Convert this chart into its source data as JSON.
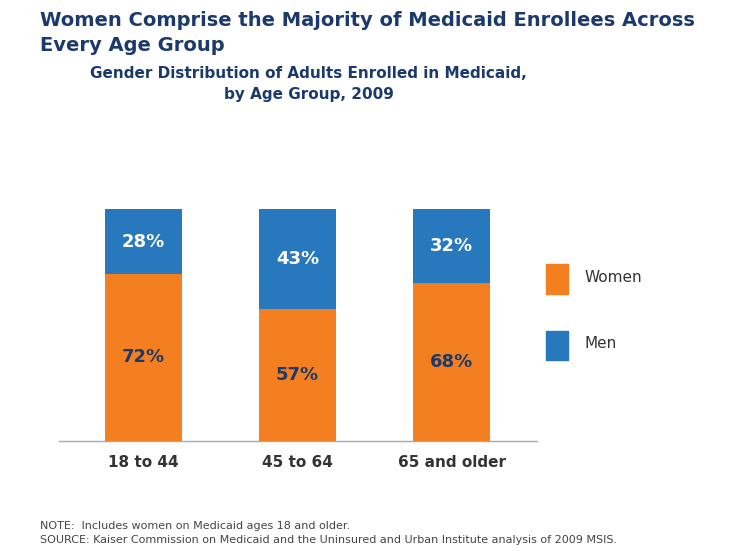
{
  "title_main": "Women Comprise the Majority of Medicaid Enrollees Across\nEvery Age Group",
  "subtitle": "Gender Distribution of Adults Enrolled in Medicaid,\nby Age Group, 2009",
  "categories": [
    "18 to 44",
    "45 to 64",
    "65 and older"
  ],
  "women_pct": [
    72,
    57,
    68
  ],
  "men_pct": [
    28,
    43,
    32
  ],
  "women_color": "#F47F20",
  "men_color": "#2878BE",
  "background_color": "#FFFFFF",
  "title_color": "#1B3A6B",
  "subtitle_color": "#1B3A6B",
  "label_color_orange": "#1B3A6B",
  "label_color_blue": "#FFFFFF",
  "note_text": "NOTE:  Includes women on Medicaid ages 18 and older.\nSOURCE: Kaiser Commission on Medicaid and the Uninsured and Urban Institute analysis of 2009 MSIS.",
  "legend_women": "Women",
  "legend_men": "Men",
  "bar_width": 0.5,
  "ylim": [
    0,
    107
  ],
  "title_fontsize": 14,
  "subtitle_fontsize": 11,
  "tick_fontsize": 11,
  "label_fontsize": 13,
  "note_fontsize": 8,
  "legend_fontsize": 11
}
